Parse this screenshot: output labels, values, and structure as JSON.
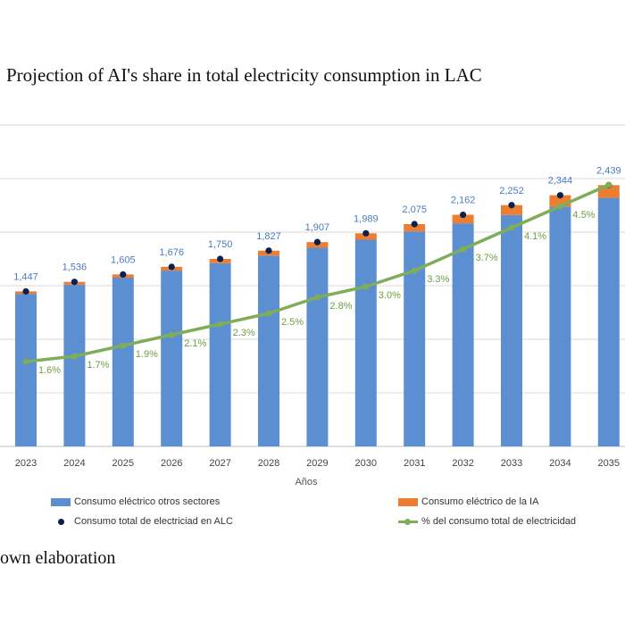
{
  "title": "Projection of AI's share in total electricity consumption in LAC",
  "source_text": "own elaboration",
  "chart_data": {
    "type": "bar",
    "xlabel": "Años",
    "categories": [
      "2023",
      "2024",
      "2025",
      "2026",
      "2027",
      "2028",
      "2029",
      "2030",
      "2031",
      "2032",
      "2033",
      "2034",
      "2035"
    ],
    "ylim": [
      0,
      3000
    ],
    "grid": true,
    "series": [
      {
        "name": "Consumo eléctrico otros sectores",
        "kind": "bar-stacked",
        "color": "#5b8fd1",
        "values": [
          1424,
          1510,
          1575,
          1641,
          1710,
          1781,
          1854,
          1929,
          2007,
          2082,
          2160,
          2239,
          2320
        ]
      },
      {
        "name": "Consumo eléctrico de la IA",
        "kind": "bar-stacked",
        "color": "#ed7d31",
        "values": [
          23,
          26,
          30,
          35,
          40,
          46,
          53,
          60,
          68,
          80,
          92,
          105,
          119
        ]
      },
      {
        "name": "Consumo total de electriciad en ALC",
        "kind": "dot",
        "color": "#0d1f4f",
        "values": [
          1447,
          1536,
          1605,
          1676,
          1750,
          1827,
          1907,
          1989,
          2075,
          2162,
          2252,
          2344,
          2439
        ],
        "labels": [
          "1,447",
          "1,536",
          "1,605",
          "1,676",
          "1,750",
          "1,827",
          "1,907",
          "1,989",
          "2,075",
          "2,162",
          "2,252",
          "2,344",
          "2,439"
        ]
      },
      {
        "name": "% del consumo total de electricidad",
        "kind": "line",
        "color": "#7fad5a",
        "values": [
          1.6,
          1.7,
          1.9,
          2.1,
          2.3,
          2.5,
          2.8,
          3.0,
          3.3,
          3.7,
          4.1,
          4.5,
          4.9
        ],
        "labels": [
          "1.6%",
          "1.7%",
          "1.9%",
          "2.1%",
          "2.3%",
          "2.5%",
          "2.8%",
          "3.0%",
          "3.3%",
          "3.7%",
          "4.1%",
          "4.5%",
          ""
        ]
      }
    ],
    "legend": {
      "bars_other": "Consumo eléctrico otros sectores",
      "bars_ai": "Consumo eléctrico de la IA",
      "dot_total": "Consumo total de electriciad en ALC",
      "line_pct": "% del consumo total de electricidad"
    }
  }
}
